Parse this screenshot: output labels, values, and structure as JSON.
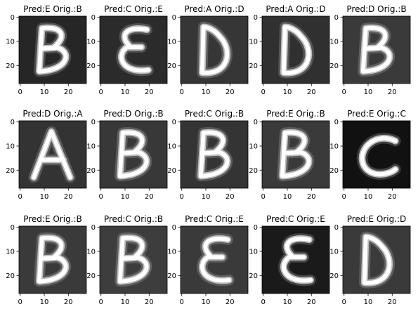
{
  "chart_data": {
    "type": "image_grid",
    "rows": 3,
    "cols": 5,
    "panels": [
      {
        "title": "Pred:E Orig.:B",
        "pred": "E",
        "orig": "B",
        "glyph": "B",
        "bg": "#262626"
      },
      {
        "title": "Pred:C Orig.:E",
        "pred": "C",
        "orig": "E",
        "glyph": "E",
        "bg": "#2b2b2b"
      },
      {
        "title": "Pred:A Orig.:D",
        "pred": "A",
        "orig": "D",
        "glyph": "D",
        "bg": "#363636"
      },
      {
        "title": "Pred:A Orig.:D",
        "pred": "A",
        "orig": "D",
        "glyph": "D",
        "bg": "#303030"
      },
      {
        "title": "Pred:D Orig.:B",
        "pred": "D",
        "orig": "B",
        "glyph": "B",
        "bg": "#3a3a3a"
      },
      {
        "title": "Pred:D Orig.:A",
        "pred": "D",
        "orig": "A",
        "glyph": "A",
        "bg": "#333333"
      },
      {
        "title": "Pred:D Orig.:B",
        "pred": "D",
        "orig": "B",
        "glyph": "B",
        "bg": "#383838"
      },
      {
        "title": "Pred:C Orig.:B",
        "pred": "C",
        "orig": "B",
        "glyph": "B",
        "bg": "#343434"
      },
      {
        "title": "Pred:E Orig.:B",
        "pred": "E",
        "orig": "B",
        "glyph": "B",
        "bg": "#3a3a3a"
      },
      {
        "title": "Pred:E Orig.:C",
        "pred": "E",
        "orig": "C",
        "glyph": "C",
        "bg": "#111111"
      },
      {
        "title": "Pred:E Orig.:B",
        "pred": "E",
        "orig": "B",
        "glyph": "B",
        "bg": "#3a3a3a"
      },
      {
        "title": "Pred:C Orig.:B",
        "pred": "C",
        "orig": "B",
        "glyph": "B",
        "bg": "#3d3d3d"
      },
      {
        "title": "Pred:C Orig.:E",
        "pred": "C",
        "orig": "E",
        "glyph": "E",
        "bg": "#3a3a3a"
      },
      {
        "title": "Pred:C Orig.:E",
        "pred": "C",
        "orig": "E",
        "glyph": "E",
        "bg": "#1a1a1a"
      },
      {
        "title": "Pred:E Orig.:D",
        "pred": "E",
        "orig": "D",
        "glyph": "D",
        "bg": "#3a3a3a"
      }
    ],
    "x_ticks": [
      "0",
      "10",
      "20"
    ],
    "y_ticks": [
      "0",
      "10",
      "20"
    ],
    "image_size": 28,
    "colormap": "gray"
  }
}
